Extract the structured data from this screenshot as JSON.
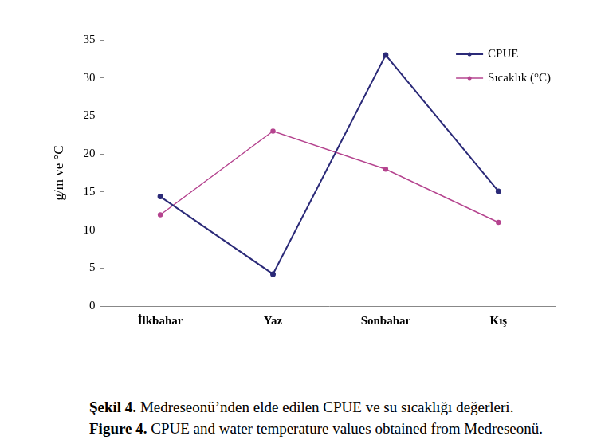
{
  "chart_data": {
    "type": "line",
    "y_label": "g/m ve °C",
    "categories": [
      "İlkbahar",
      "Yaz",
      "Sonbahar",
      "Kış"
    ],
    "series": [
      {
        "name": "CPUE",
        "color": "#2b2a78",
        "marker": "circle",
        "values": [
          14.4,
          4.2,
          33,
          15.1
        ]
      },
      {
        "name": "Sıcaklık (°C)",
        "color": "#b5448f",
        "marker": "circle",
        "values": [
          12,
          23,
          18,
          11
        ]
      }
    ],
    "ylim": [
      0,
      35
    ],
    "yticks": [
      0,
      5,
      10,
      15,
      20,
      25,
      30,
      35
    ],
    "grid": false,
    "legend": "upper right",
    "annotations": [
      "Şekil 4. Medreseonü’nden elde edilen CPUE ve su sıcaklığı değerleri.",
      "Figure 4. CPUE and water temperature values obtained from Medreseonü."
    ]
  }
}
